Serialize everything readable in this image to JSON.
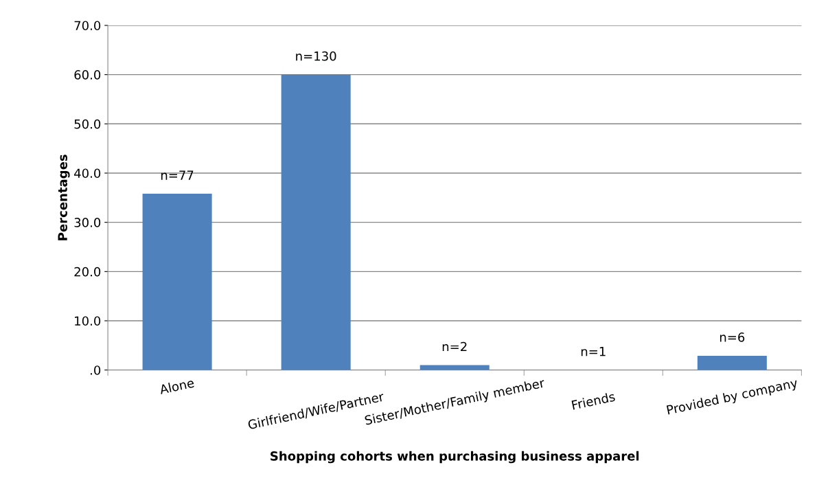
{
  "chart_data": {
    "type": "bar",
    "xlabel": "Shopping cohorts when purchasing business apparel",
    "ylabel": "Percentages",
    "categories": [
      "Alone",
      "Girlfriend/Wife/Partner",
      "Sister/Mother/Family member",
      "Friends",
      "Provided by company"
    ],
    "values": [
      35.8,
      60.0,
      1.0,
      0,
      2.9
    ],
    "annotations": [
      {
        "text": "n=77",
        "x": "Alone",
        "y": 35.8
      },
      {
        "text": "n=130",
        "x": "Girlfriend/Wife/Partner",
        "y": 60.0
      },
      {
        "text": "n=2",
        "x": "Sister/Mother/Family member",
        "y": 1.0
      },
      {
        "text": "n=1",
        "x": "Friends",
        "y": 0
      },
      {
        "text": "n=6",
        "x": "Provided by company",
        "y": 2.9
      }
    ],
    "color": "#4f81bd",
    "ylim": [
      0,
      70
    ],
    "yticks": [
      {
        "value": 0,
        "label": ".0"
      },
      {
        "value": 10,
        "label": "10.0"
      },
      {
        "value": 20,
        "label": "20.0"
      },
      {
        "value": 30,
        "label": "30.0"
      },
      {
        "value": 40,
        "label": "40.0"
      },
      {
        "value": 50,
        "label": "50.0"
      },
      {
        "value": 60,
        "label": "60.0"
      },
      {
        "value": 70,
        "label": "70.0"
      }
    ],
    "grid": "y"
  }
}
